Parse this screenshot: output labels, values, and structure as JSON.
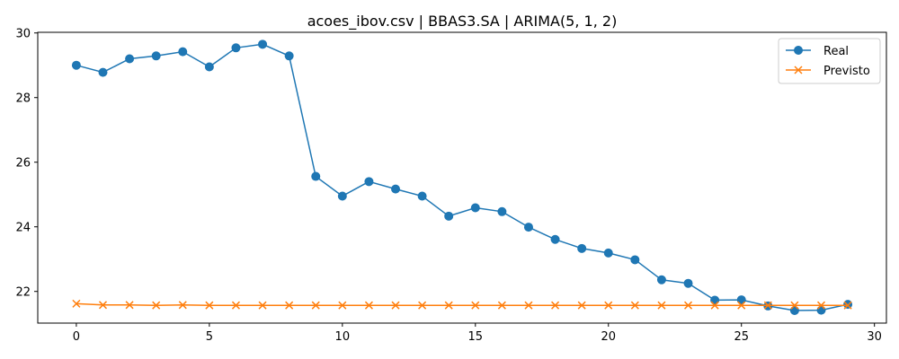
{
  "chart_data": {
    "type": "line",
    "title": "acoes_ibov.csv | BBAS3.SA | ARIMA(5, 1, 2)",
    "xlabel": "",
    "ylabel": "",
    "xlim": [
      -1.45,
      30.45
    ],
    "ylim": [
      21.02,
      30.02
    ],
    "x_ticks": [
      0,
      5,
      10,
      15,
      20,
      25,
      30
    ],
    "y_ticks": [
      22,
      24,
      26,
      28,
      30
    ],
    "grid": false,
    "legend_position": "top-right",
    "series": [
      {
        "name": "Real",
        "marker": "circle",
        "color": "#1f77b4",
        "x": [
          0,
          1,
          2,
          3,
          4,
          5,
          6,
          7,
          8,
          9,
          10,
          11,
          12,
          13,
          14,
          15,
          16,
          17,
          18,
          19,
          20,
          21,
          22,
          23,
          24,
          25,
          26,
          27,
          28,
          29
        ],
        "values": [
          29.0,
          28.78,
          29.2,
          29.29,
          29.42,
          28.95,
          29.54,
          29.65,
          29.29,
          25.56,
          24.95,
          25.4,
          25.17,
          24.95,
          24.33,
          24.59,
          24.47,
          23.99,
          23.61,
          23.33,
          23.19,
          22.98,
          22.36,
          22.25,
          21.73,
          21.74,
          21.55,
          21.41,
          21.42,
          21.6
        ]
      },
      {
        "name": "Previsto",
        "marker": "x",
        "color": "#ff7f0e",
        "x": [
          0,
          1,
          2,
          3,
          4,
          5,
          6,
          7,
          8,
          9,
          10,
          11,
          12,
          13,
          14,
          15,
          16,
          17,
          18,
          19,
          20,
          21,
          22,
          23,
          24,
          25,
          26,
          27,
          28,
          29
        ],
        "values": [
          21.62,
          21.58,
          21.58,
          21.57,
          21.58,
          21.57,
          21.57,
          21.57,
          21.57,
          21.57,
          21.57,
          21.57,
          21.57,
          21.57,
          21.57,
          21.57,
          21.57,
          21.57,
          21.57,
          21.57,
          21.57,
          21.57,
          21.57,
          21.57,
          21.57,
          21.57,
          21.57,
          21.57,
          21.57,
          21.57
        ]
      }
    ]
  }
}
